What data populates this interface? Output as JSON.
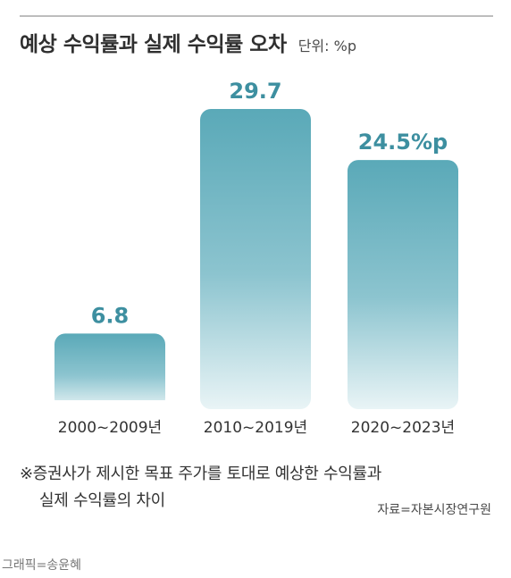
{
  "header": {
    "title": "예상 수익률과 실제 수익률 오차",
    "unit": "단위: %p"
  },
  "chart_data": {
    "type": "bar",
    "title": "예상 수익률과 실제 수익률 오차",
    "unit": "단위: %p",
    "categories": [
      "2000~2009년",
      "2010~2019년",
      "2020~2023년"
    ],
    "values": [
      6.8,
      29.7,
      24.5
    ],
    "value_labels": [
      "6.8",
      "29.7",
      "24.5%p"
    ],
    "ylim": [
      0,
      29.7
    ],
    "grid": false,
    "colors": {
      "bar_top": "#5aa9b8",
      "bar_bottom": "#e9f4f6",
      "label": "#3d8fa0"
    }
  },
  "footer": {
    "note_line1": "※증권사가 제시한 목표 주가를 토대로 예상한 수익률과",
    "note_line2": "실제 수익률의 차이",
    "source": "자료=자본시장연구원",
    "credit": "그래픽=송윤혜"
  }
}
